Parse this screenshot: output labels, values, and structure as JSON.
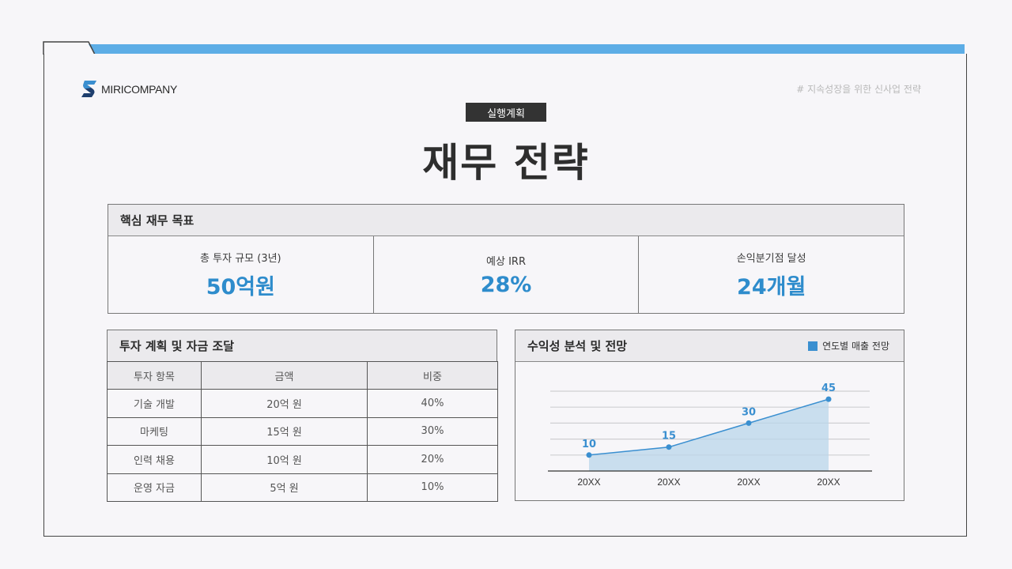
{
  "header": {
    "brand": "MIRICOMPANY",
    "tagline": "# 지속성장을 위한 신사업 전략",
    "section_badge": "실행계획",
    "title": "재무 전략",
    "accent_color": "#5dade6"
  },
  "kpi_card": {
    "title": "핵심 재무 목표",
    "items": [
      {
        "label": "총 투자 규모 (3년)",
        "value": "50억원"
      },
      {
        "label": "예상 IRR",
        "value": "28%"
      },
      {
        "label": "손익분기점 달성",
        "value": "24개월"
      }
    ],
    "value_color": "#2e8ccc"
  },
  "investment_card": {
    "title": "투자 계획 및 자금 조달",
    "columns": [
      "투자 항목",
      "금액",
      "비중"
    ],
    "rows": [
      [
        "기술 개발",
        "20억 원",
        "40%"
      ],
      [
        "마케팅",
        "15억 원",
        "30%"
      ],
      [
        "인력 채용",
        "10억 원",
        "20%"
      ],
      [
        "운영 자금",
        "5억 원",
        "10%"
      ]
    ]
  },
  "chart_card": {
    "title": "수익성 분석 및 전망",
    "legend": "연도별 매출 전망"
  },
  "chart_data": {
    "type": "area",
    "title": "수익성 분석 및 전망",
    "categories": [
      "20XX",
      "20XX",
      "20XX",
      "20XX"
    ],
    "series": [
      {
        "name": "연도별 매출 전망",
        "values": [
          10,
          15,
          30,
          45
        ],
        "color": "#3a8fd0"
      }
    ],
    "data_labels": [
      "10",
      "15",
      "30",
      "45"
    ],
    "xlabel": "",
    "ylabel": "",
    "ylim": [
      0,
      50
    ],
    "grid": true,
    "legend_position": "top-right"
  }
}
